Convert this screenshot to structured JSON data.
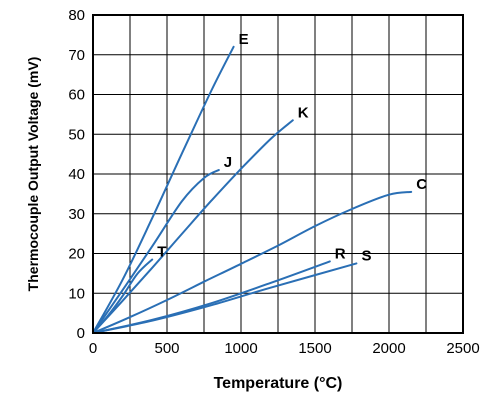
{
  "chart_data": {
    "type": "line",
    "title": "",
    "xlabel": "Temperature (°C)",
    "ylabel": "Thermocouple Output Voltage (mV)",
    "xlim": [
      0,
      2500
    ],
    "ylim": [
      0,
      80
    ],
    "xticks": [
      0,
      500,
      1000,
      1500,
      2000,
      2500
    ],
    "yticks": [
      0,
      10,
      20,
      30,
      40,
      50,
      60,
      70,
      80
    ],
    "grid": true,
    "legend": "none (series labelled directly on the lines)",
    "line_color": "#2a6fb5",
    "series": [
      {
        "name": "E",
        "x": [
          0,
          200,
          400,
          600,
          800,
          950
        ],
        "y": [
          0,
          13.4,
          28.9,
          45.1,
          61.0,
          72.0
        ]
      },
      {
        "name": "J",
        "x": [
          0,
          200,
          400,
          600,
          750,
          850
        ],
        "y": [
          0,
          10.8,
          21.8,
          33.1,
          39.0,
          41.0
        ]
      },
      {
        "name": "K",
        "x": [
          0,
          200,
          400,
          600,
          800,
          1000,
          1200,
          1350
        ],
        "y": [
          0,
          8.1,
          16.4,
          24.9,
          33.3,
          41.3,
          48.8,
          53.5
        ]
      },
      {
        "name": "T",
        "x": [
          0,
          100,
          200,
          300,
          400
        ],
        "y": [
          0,
          4.3,
          9.3,
          14.9,
          18.5
        ]
      },
      {
        "name": "C",
        "x": [
          0,
          250,
          500,
          750,
          1000,
          1250,
          1500,
          1750,
          2000,
          2150
        ],
        "y": [
          0,
          4.0,
          8.3,
          12.9,
          17.4,
          22.0,
          26.9,
          31.2,
          34.8,
          35.5
        ]
      },
      {
        "name": "R",
        "x": [
          0,
          400,
          800,
          1200,
          1600
        ],
        "y": [
          0,
          3.3,
          7.5,
          12.6,
          18.0
        ]
      },
      {
        "name": "S",
        "x": [
          0,
          400,
          800,
          1200,
          1780
        ],
        "y": [
          0,
          3.1,
          7.0,
          11.4,
          17.5
        ]
      }
    ]
  }
}
